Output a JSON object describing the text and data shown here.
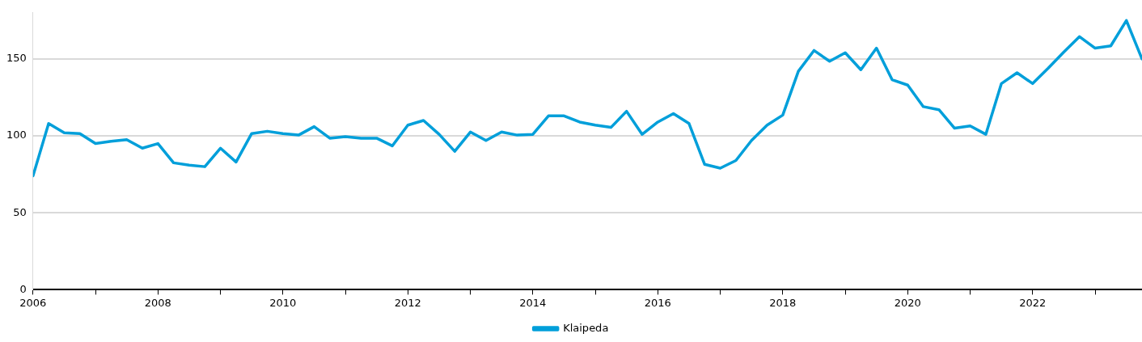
{
  "chart_data": {
    "type": "line",
    "x": [
      2006,
      2006.25,
      2006.5,
      2006.75,
      2007,
      2007.25,
      2007.5,
      2007.75,
      2008,
      2008.25,
      2008.5,
      2008.75,
      2009,
      2009.25,
      2009.5,
      2009.75,
      2010,
      2010.25,
      2010.5,
      2010.75,
      2011,
      2011.25,
      2011.5,
      2011.75,
      2012,
      2012.25,
      2012.5,
      2012.75,
      2013,
      2013.25,
      2013.5,
      2013.75,
      2014,
      2014.25,
      2014.5,
      2014.75,
      2015,
      2015.25,
      2015.5,
      2015.75,
      2016,
      2016.25,
      2016.5,
      2016.75,
      2017,
      2017.25,
      2017.5,
      2017.75,
      2018,
      2018.25,
      2018.5,
      2018.75,
      2019,
      2019.25,
      2019.5,
      2019.75,
      2020,
      2020.25,
      2020.5,
      2020.75,
      2021,
      2021.25,
      2021.5,
      2021.75,
      2022,
      2022.25,
      2022.5,
      2022.75,
      2023,
      2023.25,
      2023.5,
      2023.75
    ],
    "series": [
      {
        "name": "Klaipeda",
        "color": "#009fda",
        "values": [
          74,
          108,
          102,
          101.5,
          95,
          96.5,
          97.5,
          92,
          95,
          82.5,
          81,
          80,
          92,
          83,
          101.5,
          103,
          101.5,
          100.5,
          106,
          98.5,
          99.5,
          98.5,
          98.5,
          93.5,
          107,
          110,
          101,
          90,
          102.5,
          97,
          102.5,
          100.5,
          101,
          113,
          113,
          109,
          107,
          105.5,
          116,
          101,
          109,
          114.5,
          108,
          81.5,
          79,
          84,
          97,
          107,
          113.5,
          142,
          155.5,
          148.5,
          154,
          143,
          157,
          136.5,
          133,
          119,
          117,
          105,
          106.5,
          101,
          134,
          141,
          134,
          144,
          154.5,
          164.5,
          157,
          158.5,
          175,
          150
        ]
      }
    ],
    "xlim": [
      2006,
      2023.75
    ],
    "xticks": [
      2006,
      {
        "value": 2007,
        "label": null
      },
      2008,
      {
        "value": 2009,
        "label": null
      },
      2010,
      {
        "value": 2011,
        "label": null
      },
      2012,
      {
        "value": 2013,
        "label": null
      },
      2014,
      {
        "value": 2015,
        "label": null
      },
      2016,
      {
        "value": 2017,
        "label": null
      },
      2018,
      {
        "value": 2019,
        "label": null
      },
      2020,
      {
        "value": 2021,
        "label": null
      },
      2022,
      {
        "value": 2023,
        "label": null
      }
    ],
    "ylim": [
      0,
      180
    ],
    "yticks": [
      0,
      50,
      100,
      150
    ],
    "grid": "y",
    "legend": "bottom",
    "marker": "none",
    "line_style": "solid"
  }
}
